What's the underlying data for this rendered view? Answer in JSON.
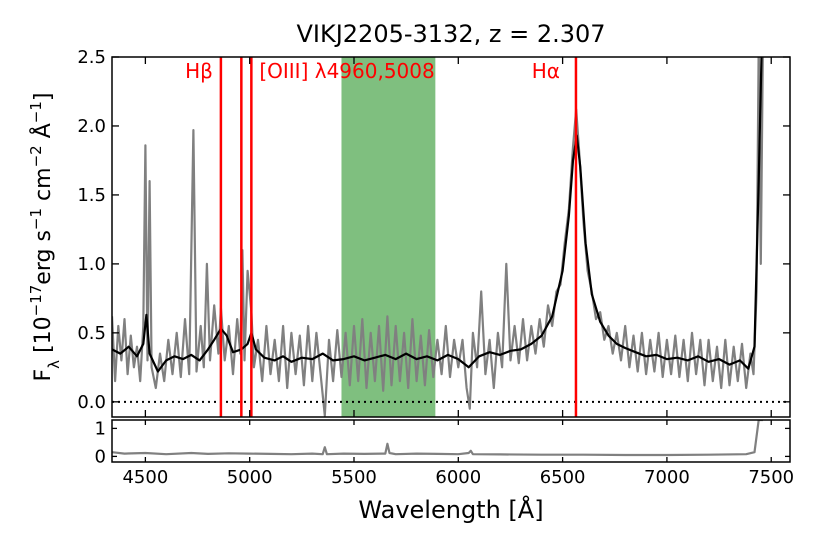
{
  "chart_data": [
    {
      "type": "line",
      "title": "VIKJ2205-3132, z = 2.307",
      "ylabel_parts": [
        "F",
        "λ",
        " [10",
        "−17",
        "erg s",
        "−1",
        " cm",
        "−2",
        " Å",
        "−1",
        "]"
      ],
      "xlim": [
        4340,
        7590
      ],
      "ylim": [
        -0.11,
        2.5
      ],
      "xticks": [
        4500,
        5000,
        5500,
        6000,
        6500,
        7000,
        7500
      ],
      "yticks": [
        {
          "value": 0,
          "label": "0.0"
        },
        0.5,
        {
          "value": 1,
          "label": "1.0"
        },
        1.5,
        {
          "value": 2,
          "label": "2.0"
        },
        2.5
      ],
      "band": [
        5440,
        5890
      ],
      "band_color": "#7fbf7f",
      "hline": 0,
      "lines": [
        4862,
        4960,
        5008,
        6564
      ],
      "line_color": "#ff0000",
      "annotations": [
        "Hβ",
        "[OIII] λ4960,5008",
        "Hα"
      ],
      "series": [
        {
          "color": "#808080",
          "x": [
            4340,
            4355,
            4370,
            4385,
            4400,
            4415,
            4430,
            4445,
            4460,
            4475,
            4490,
            4500,
            4510,
            4520,
            4530,
            4550,
            4570,
            4590,
            4610,
            4630,
            4650,
            4670,
            4690,
            4710,
            4730,
            4745,
            4765,
            4780,
            4795,
            4810,
            4830,
            4850,
            4862,
            4880,
            4900,
            4920,
            4940,
            4955,
            4965,
            4975,
            4990,
            5008,
            5020,
            5040,
            5060,
            5080,
            5100,
            5120,
            5140,
            5160,
            5180,
            5200,
            5220,
            5240,
            5260,
            5280,
            5300,
            5320,
            5340,
            5360,
            5380,
            5400,
            5420,
            5440,
            5460,
            5480,
            5500,
            5520,
            5540,
            5560,
            5580,
            5600,
            5620,
            5640,
            5660,
            5680,
            5700,
            5720,
            5740,
            5760,
            5780,
            5800,
            5820,
            5840,
            5860,
            5880,
            5900,
            5920,
            5940,
            5960,
            5980,
            6000,
            6020,
            6040,
            6055,
            6070,
            6090,
            6110,
            6130,
            6150,
            6170,
            6190,
            6210,
            6230,
            6250,
            6270,
            6290,
            6310,
            6330,
            6350,
            6370,
            6390,
            6410,
            6430,
            6450,
            6470,
            6490,
            6510,
            6530,
            6550,
            6565,
            6580,
            6600,
            6620,
            6640,
            6660,
            6680,
            6700,
            6720,
            6740,
            6760,
            6780,
            6800,
            6820,
            6840,
            6860,
            6880,
            6900,
            6920,
            6940,
            6960,
            6980,
            7000,
            7020,
            7040,
            7060,
            7080,
            7100,
            7120,
            7140,
            7160,
            7180,
            7200,
            7220,
            7240,
            7260,
            7280,
            7300,
            7320,
            7340,
            7360,
            7380,
            7400,
            7415,
            7430,
            7440,
            7450,
            7460
          ],
          "values": [
            0.62,
            0.15,
            0.55,
            0.3,
            0.6,
            0.2,
            0.48,
            0.25,
            0.4,
            0.15,
            0.55,
            1.86,
            0.3,
            1.6,
            0.25,
            0.1,
            0.35,
            0.15,
            0.45,
            0.2,
            0.5,
            0.18,
            0.6,
            0.2,
            1.97,
            0.22,
            0.55,
            0.25,
            1.0,
            0.3,
            0.7,
            0.35,
            0.68,
            0.3,
            0.55,
            0.2,
            0.6,
            0.35,
            1.1,
            0.3,
            0.95,
            0.65,
            0.25,
            0.45,
            0.15,
            0.55,
            0.2,
            0.45,
            0.15,
            0.55,
            0.1,
            0.5,
            0.2,
            0.48,
            0.12,
            0.55,
            0.15,
            0.5,
            0.2,
            -0.1,
            0.45,
            0.15,
            0.52,
            0.18,
            0.5,
            0.12,
            0.55,
            0.15,
            0.6,
            0.1,
            0.5,
            0.15,
            0.55,
            0.08,
            0.62,
            0.12,
            0.55,
            0.15,
            0.5,
            0.1,
            0.6,
            0.15,
            0.48,
            0.12,
            0.52,
            0.18,
            0.45,
            0.2,
            0.55,
            0.18,
            0.45,
            0.25,
            0.45,
            0.1,
            -0.05,
            0.5,
            0.25,
            0.8,
            0.2,
            0.45,
            0.1,
            0.5,
            0.25,
            1.0,
            0.3,
            0.55,
            0.28,
            0.6,
            0.3,
            0.55,
            0.35,
            0.6,
            0.4,
            0.7,
            0.55,
            0.8,
            0.85,
            1.15,
            1.4,
            1.85,
            2.12,
            1.8,
            1.3,
            0.95,
            0.8,
            0.6,
            0.65,
            0.45,
            0.55,
            0.35,
            0.5,
            0.3,
            0.55,
            0.25,
            0.48,
            0.22,
            0.5,
            0.2,
            0.45,
            0.22,
            0.5,
            0.18,
            0.45,
            0.2,
            0.48,
            0.18,
            0.45,
            0.15,
            0.5,
            0.2,
            0.45,
            0.12,
            0.45,
            0.15,
            0.4,
            0.1,
            0.45,
            0.12,
            0.4,
            0.15,
            0.42,
            0.1,
            0.35,
            0.2,
            0.8,
            2.6,
            1.0,
            2.6
          ]
        },
        {
          "color": "#000000",
          "x": [
            4340,
            4380,
            4420,
            4460,
            4490,
            4505,
            4520,
            4560,
            4600,
            4640,
            4680,
            4720,
            4760,
            4800,
            4830,
            4862,
            4890,
            4920,
            4960,
            4990,
            5008,
            5030,
            5070,
            5120,
            5160,
            5200,
            5250,
            5300,
            5350,
            5400,
            5450,
            5500,
            5550,
            5600,
            5650,
            5700,
            5750,
            5800,
            5850,
            5900,
            5950,
            6000,
            6050,
            6100,
            6150,
            6200,
            6250,
            6300,
            6350,
            6400,
            6450,
            6500,
            6530,
            6550,
            6568,
            6585,
            6610,
            6640,
            6680,
            6720,
            6760,
            6800,
            6850,
            6900,
            6950,
            7000,
            7050,
            7100,
            7150,
            7200,
            7250,
            7300,
            7350,
            7390,
            7420,
            7440,
            7455
          ],
          "values": [
            0.38,
            0.35,
            0.4,
            0.33,
            0.42,
            0.63,
            0.35,
            0.22,
            0.3,
            0.33,
            0.31,
            0.34,
            0.3,
            0.38,
            0.45,
            0.53,
            0.48,
            0.36,
            0.38,
            0.42,
            0.5,
            0.38,
            0.32,
            0.3,
            0.33,
            0.29,
            0.32,
            0.31,
            0.35,
            0.3,
            0.31,
            0.33,
            0.3,
            0.32,
            0.34,
            0.31,
            0.35,
            0.31,
            0.33,
            0.3,
            0.34,
            0.31,
            0.25,
            0.33,
            0.36,
            0.34,
            0.37,
            0.38,
            0.42,
            0.48,
            0.62,
            0.95,
            1.35,
            1.75,
            1.93,
            1.7,
            1.15,
            0.78,
            0.58,
            0.48,
            0.42,
            0.39,
            0.36,
            0.33,
            0.34,
            0.31,
            0.32,
            0.3,
            0.33,
            0.29,
            0.31,
            0.27,
            0.3,
            0.24,
            0.4,
            1.6,
            2.6
          ]
        }
      ]
    },
    {
      "type": "line",
      "xlabel": "Wavelength [Å]",
      "xlim": [
        4340,
        7590
      ],
      "ylim": [
        -0.2,
        1.3
      ],
      "xticks": [
        4500,
        5000,
        5500,
        6000,
        6500,
        7000,
        7500
      ],
      "yticks": [
        0,
        1
      ],
      "series": [
        {
          "color": "#808080",
          "x": [
            4340,
            4400,
            4500,
            4600,
            4720,
            4800,
            4900,
            5000,
            5100,
            5200,
            5300,
            5350,
            5360,
            5370,
            5450,
            5550,
            5650,
            5660,
            5670,
            5700,
            5800,
            5900,
            6000,
            6050,
            6060,
            6070,
            6200,
            6400,
            6600,
            6800,
            7000,
            7200,
            7380,
            7420,
            7440,
            7460
          ],
          "values": [
            0.15,
            0.1,
            0.12,
            0.08,
            0.12,
            0.09,
            0.11,
            0.1,
            0.09,
            0.08,
            0.1,
            0.08,
            0.33,
            0.08,
            0.1,
            0.09,
            0.1,
            0.45,
            0.12,
            0.08,
            0.1,
            0.09,
            0.08,
            0.12,
            0.2,
            0.08,
            0.07,
            0.06,
            0.06,
            0.05,
            0.05,
            0.06,
            0.08,
            0.15,
            1.3,
            1.3
          ]
        }
      ]
    }
  ]
}
